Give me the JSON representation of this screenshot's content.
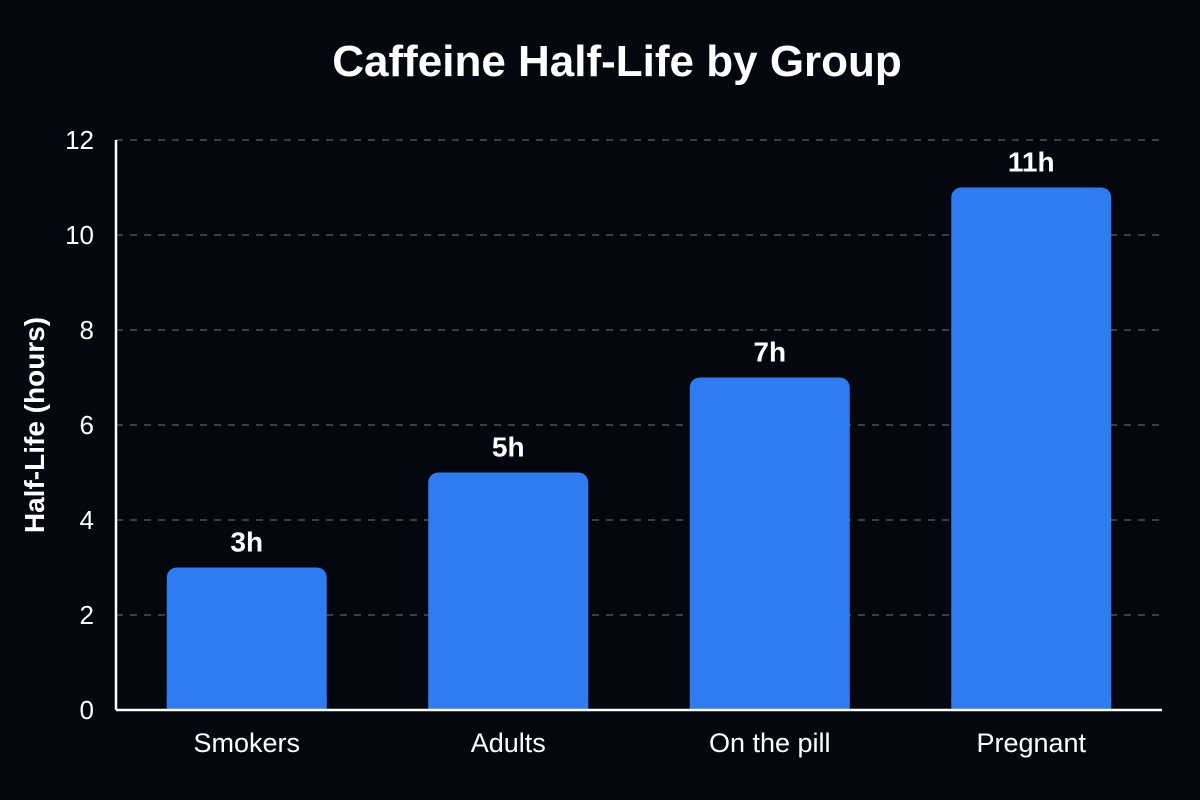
{
  "chart_data": {
    "type": "bar",
    "title": "Caffeine Half-Life by Group",
    "xlabel": "",
    "ylabel": "Half-Life (hours)",
    "categories": [
      "Smokers",
      "Adults",
      "On the pill",
      "Pregnant"
    ],
    "values": [
      3,
      5,
      7,
      11
    ],
    "data_labels": [
      "3h",
      "5h",
      "7h",
      "11h"
    ],
    "ylim": [
      0,
      12
    ],
    "yticks": [
      0,
      2,
      4,
      6,
      8,
      10,
      12
    ],
    "grid": true,
    "legend": "none",
    "colors": {
      "background": "#05070f",
      "bar": "#2f7bf0",
      "grid": "#5a5e6b",
      "axis": "#ffffff",
      "text": "#ffffff"
    }
  }
}
